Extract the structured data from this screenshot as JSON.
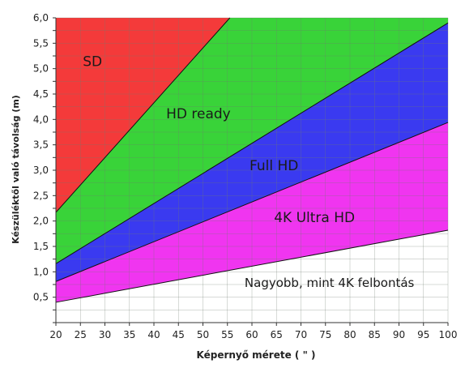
{
  "chart_data": {
    "type": "area",
    "title": "",
    "xlabel": "Képernyő mérete ( \" )",
    "ylabel": "Készüléktől való távolság (m)",
    "xlim": [
      20,
      100
    ],
    "ylim": [
      0,
      6.0
    ],
    "x_ticks": [
      "20",
      "25",
      "30",
      "35",
      "40",
      "45",
      "50",
      "55",
      "60",
      "65",
      "70",
      "75",
      "80",
      "85",
      "90",
      "95",
      "100"
    ],
    "y_ticks": [
      "0,5",
      "1,0",
      "1,5",
      "2,0",
      "2,5",
      "3,0",
      "3,5",
      "4,0",
      "4,5",
      "5,0",
      "5,5",
      "6,0"
    ],
    "grid": true,
    "boundaries": [
      {
        "name": "SD / HD ready",
        "x": [
          20,
          55.5
        ],
        "y": [
          2.17,
          6.0
        ]
      },
      {
        "name": "HD ready / Full HD",
        "x": [
          20,
          100
        ],
        "y": [
          1.16,
          5.9
        ]
      },
      {
        "name": "Full HD / 4K Ultra HD",
        "x": [
          20,
          100
        ],
        "y": [
          0.81,
          3.94
        ]
      },
      {
        "name": "4K Ultra HD / Nagyobb",
        "x": [
          20,
          100
        ],
        "y": [
          0.4,
          1.82
        ]
      }
    ],
    "regions": [
      {
        "label": "SD",
        "color": "#f43a3a"
      },
      {
        "label": "HD ready",
        "color": "#39d339"
      },
      {
        "label": "Full HD",
        "color": "#3a3af0"
      },
      {
        "label": "4K Ultra HD",
        "color": "#f035f0"
      },
      {
        "label": "Nagyobb, mint 4K felbontás",
        "color": "#ffffff"
      }
    ]
  }
}
